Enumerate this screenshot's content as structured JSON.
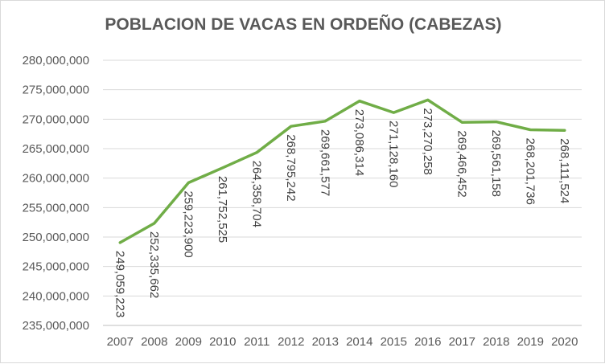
{
  "chart_data": {
    "type": "line",
    "title": "POBLACION DE VACAS EN ORDEÑO (CABEZAS)",
    "xlabel": "",
    "ylabel": "",
    "categories": [
      "2007",
      "2008",
      "2009",
      "2010",
      "2011",
      "2012",
      "2013",
      "2014",
      "2015",
      "2016",
      "2017",
      "2018",
      "2019",
      "2020"
    ],
    "series": [
      {
        "values": [
          249059223,
          252335662,
          259223900,
          261752525,
          264358704,
          268795242,
          269661577,
          273086314,
          271128160,
          273270258,
          269466452,
          269561158,
          268201736,
          268111524
        ],
        "labels": [
          "249,059,223",
          "252,335,662",
          "259,223,900",
          "261,752,525",
          "264,358,704",
          "268,795,242",
          "269,661,577",
          "273,086,314",
          "271,128,160",
          "273,270,258",
          "269,466,452",
          "269,561,158",
          "268,201,736",
          "268,111,524"
        ],
        "color": "#70ad47"
      }
    ],
    "ylim": [
      235000000,
      280000000
    ],
    "yticks": [
      235000000,
      240000000,
      245000000,
      250000000,
      255000000,
      260000000,
      265000000,
      270000000,
      275000000,
      280000000
    ],
    "ytick_labels": [
      "235,000,000",
      "240,000,000",
      "245,000,000",
      "250,000,000",
      "255,000,000",
      "260,000,000",
      "265,000,000",
      "270,000,000",
      "275,000,000",
      "280,000,000"
    ],
    "grid": true,
    "legend": "none"
  }
}
